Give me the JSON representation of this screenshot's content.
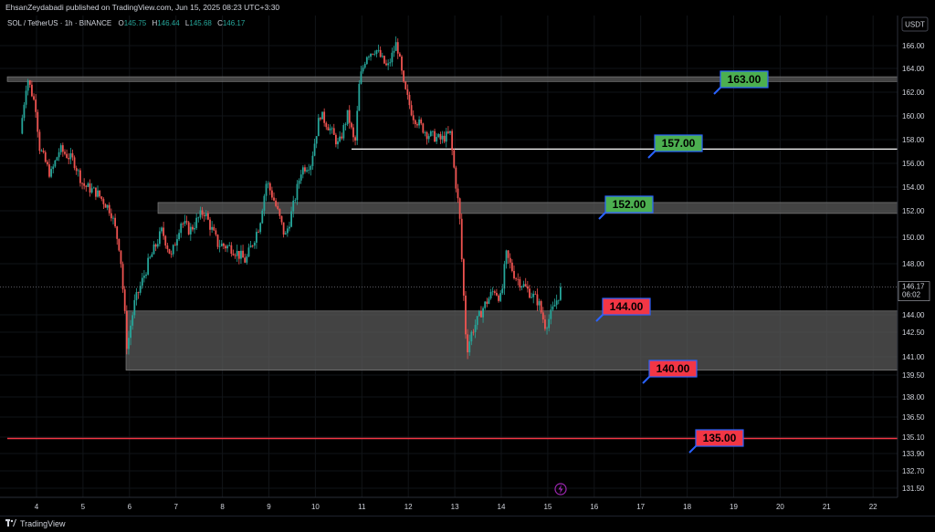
{
  "publisher_line": "EhsanZeydabadi published on TradingView.com, Jun 15, 2025 08:23 UTC+3:30",
  "footer": {
    "brand": "TradingView"
  },
  "colors": {
    "up": "#26a69a",
    "down": "#ef5350",
    "green_label": "#4caf50",
    "red_label": "#f23645",
    "label_border": "#2962ff",
    "zone": "#5a5a5a"
  },
  "chart_data": {
    "type": "candlestick",
    "symbol_header": {
      "symbol": "SOL / TetherUS · 1h · BINANCE",
      "O": "145.75",
      "H": "146.44",
      "L": "145.68",
      "C": "146.17"
    },
    "currency": "USDT",
    "y_ticks": [
      "166.00",
      "164.00",
      "162.00",
      "160.00",
      "158.00",
      "156.00",
      "154.00",
      "152.00",
      "150.00",
      "148.00",
      "144.00",
      "142.50",
      "141.00",
      "139.50",
      "138.00",
      "136.50",
      "135.10",
      "133.90",
      "132.70",
      "131.50"
    ],
    "x_ticks": [
      "4",
      "5",
      "6",
      "7",
      "8",
      "9",
      "10",
      "11",
      "12",
      "13",
      "14",
      "15",
      "16",
      "17",
      "18",
      "19",
      "20",
      "21",
      "22"
    ],
    "current_price": "146.17",
    "countdown": "06:02",
    "zones": [
      {
        "from": 162.9,
        "to": 163.3
      },
      {
        "from": 151.8,
        "to": 152.7
      },
      {
        "from": 139.9,
        "to": 144.3
      }
    ],
    "lines": [
      {
        "price": 157.2,
        "color": "white"
      },
      {
        "price": 135.0,
        "color": "red"
      }
    ],
    "levels": [
      {
        "label": "163.00",
        "color": "green"
      },
      {
        "label": "157.00",
        "color": "green"
      },
      {
        "label": "152.00",
        "color": "green"
      },
      {
        "label": "144.00",
        "color": "red"
      },
      {
        "label": "140.00",
        "color": "red"
      },
      {
        "label": "135.00",
        "color": "red"
      }
    ],
    "price_path": [
      [
        3.65,
        158.5
      ],
      [
        3.8,
        163.3
      ],
      [
        4.0,
        160.5
      ],
      [
        4.05,
        157.5
      ],
      [
        4.3,
        155.0
      ],
      [
        4.5,
        157.2
      ],
      [
        4.8,
        156.2
      ],
      [
        5.0,
        154.2
      ],
      [
        5.3,
        153.5
      ],
      [
        5.6,
        152.0
      ],
      [
        5.8,
        149.0
      ],
      [
        5.95,
        141.4
      ],
      [
        6.1,
        144.8
      ],
      [
        6.4,
        148.0
      ],
      [
        6.7,
        150.5
      ],
      [
        6.9,
        148.5
      ],
      [
        7.1,
        151.2
      ],
      [
        7.3,
        150.5
      ],
      [
        7.6,
        152.0
      ],
      [
        7.9,
        149.5
      ],
      [
        8.2,
        149.2
      ],
      [
        8.5,
        148.2
      ],
      [
        8.8,
        151.0
      ],
      [
        8.95,
        154.5
      ],
      [
        9.1,
        153.0
      ],
      [
        9.35,
        150.0
      ],
      [
        9.5,
        152.0
      ],
      [
        9.7,
        155.5
      ],
      [
        9.9,
        156.0
      ],
      [
        10.1,
        160.2
      ],
      [
        10.3,
        159.0
      ],
      [
        10.5,
        157.5
      ],
      [
        10.7,
        160.2
      ],
      [
        10.85,
        157.4
      ],
      [
        10.95,
        163.0
      ],
      [
        11.1,
        165.2
      ],
      [
        11.3,
        165.7
      ],
      [
        11.55,
        164.0
      ],
      [
        11.75,
        166.3
      ],
      [
        11.9,
        162.5
      ],
      [
        12.1,
        160.0
      ],
      [
        12.4,
        158.5
      ],
      [
        12.7,
        158.0
      ],
      [
        12.9,
        158.5
      ],
      [
        13.0,
        155.0
      ],
      [
        13.1,
        151.8
      ],
      [
        13.25,
        141.4
      ],
      [
        13.4,
        142.8
      ],
      [
        13.6,
        144.5
      ],
      [
        13.85,
        146.0
      ],
      [
        14.0,
        145.2
      ],
      [
        14.1,
        148.7
      ],
      [
        14.3,
        147.0
      ],
      [
        14.55,
        146.0
      ],
      [
        14.8,
        145.0
      ],
      [
        14.95,
        143.0
      ],
      [
        15.1,
        144.3
      ],
      [
        15.3,
        146.17
      ]
    ]
  }
}
